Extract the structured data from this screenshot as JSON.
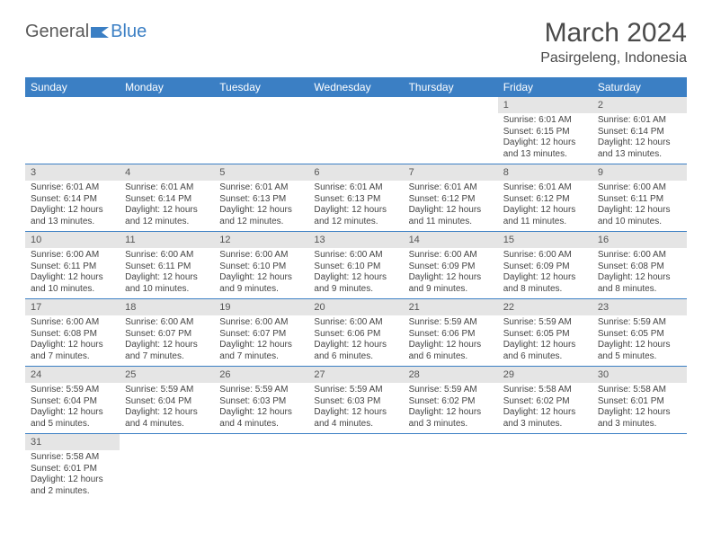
{
  "logo": {
    "part1": "General",
    "part2": "Blue"
  },
  "title": "March 2024",
  "location": "Pasirgeleng, Indonesia",
  "colors": {
    "header_bg": "#3b7fc4",
    "header_fg": "#ffffff",
    "daynum_bg": "#e5e5e5",
    "border": "#3b7fc4",
    "text": "#444444"
  },
  "weekdays": [
    "Sunday",
    "Monday",
    "Tuesday",
    "Wednesday",
    "Thursday",
    "Friday",
    "Saturday"
  ],
  "weeks": [
    [
      null,
      null,
      null,
      null,
      null,
      {
        "n": "1",
        "sr": "Sunrise: 6:01 AM",
        "ss": "Sunset: 6:15 PM",
        "dl1": "Daylight: 12 hours",
        "dl2": "and 13 minutes."
      },
      {
        "n": "2",
        "sr": "Sunrise: 6:01 AM",
        "ss": "Sunset: 6:14 PM",
        "dl1": "Daylight: 12 hours",
        "dl2": "and 13 minutes."
      }
    ],
    [
      {
        "n": "3",
        "sr": "Sunrise: 6:01 AM",
        "ss": "Sunset: 6:14 PM",
        "dl1": "Daylight: 12 hours",
        "dl2": "and 13 minutes."
      },
      {
        "n": "4",
        "sr": "Sunrise: 6:01 AM",
        "ss": "Sunset: 6:14 PM",
        "dl1": "Daylight: 12 hours",
        "dl2": "and 12 minutes."
      },
      {
        "n": "5",
        "sr": "Sunrise: 6:01 AM",
        "ss": "Sunset: 6:13 PM",
        "dl1": "Daylight: 12 hours",
        "dl2": "and 12 minutes."
      },
      {
        "n": "6",
        "sr": "Sunrise: 6:01 AM",
        "ss": "Sunset: 6:13 PM",
        "dl1": "Daylight: 12 hours",
        "dl2": "and 12 minutes."
      },
      {
        "n": "7",
        "sr": "Sunrise: 6:01 AM",
        "ss": "Sunset: 6:12 PM",
        "dl1": "Daylight: 12 hours",
        "dl2": "and 11 minutes."
      },
      {
        "n": "8",
        "sr": "Sunrise: 6:01 AM",
        "ss": "Sunset: 6:12 PM",
        "dl1": "Daylight: 12 hours",
        "dl2": "and 11 minutes."
      },
      {
        "n": "9",
        "sr": "Sunrise: 6:00 AM",
        "ss": "Sunset: 6:11 PM",
        "dl1": "Daylight: 12 hours",
        "dl2": "and 10 minutes."
      }
    ],
    [
      {
        "n": "10",
        "sr": "Sunrise: 6:00 AM",
        "ss": "Sunset: 6:11 PM",
        "dl1": "Daylight: 12 hours",
        "dl2": "and 10 minutes."
      },
      {
        "n": "11",
        "sr": "Sunrise: 6:00 AM",
        "ss": "Sunset: 6:11 PM",
        "dl1": "Daylight: 12 hours",
        "dl2": "and 10 minutes."
      },
      {
        "n": "12",
        "sr": "Sunrise: 6:00 AM",
        "ss": "Sunset: 6:10 PM",
        "dl1": "Daylight: 12 hours",
        "dl2": "and 9 minutes."
      },
      {
        "n": "13",
        "sr": "Sunrise: 6:00 AM",
        "ss": "Sunset: 6:10 PM",
        "dl1": "Daylight: 12 hours",
        "dl2": "and 9 minutes."
      },
      {
        "n": "14",
        "sr": "Sunrise: 6:00 AM",
        "ss": "Sunset: 6:09 PM",
        "dl1": "Daylight: 12 hours",
        "dl2": "and 9 minutes."
      },
      {
        "n": "15",
        "sr": "Sunrise: 6:00 AM",
        "ss": "Sunset: 6:09 PM",
        "dl1": "Daylight: 12 hours",
        "dl2": "and 8 minutes."
      },
      {
        "n": "16",
        "sr": "Sunrise: 6:00 AM",
        "ss": "Sunset: 6:08 PM",
        "dl1": "Daylight: 12 hours",
        "dl2": "and 8 minutes."
      }
    ],
    [
      {
        "n": "17",
        "sr": "Sunrise: 6:00 AM",
        "ss": "Sunset: 6:08 PM",
        "dl1": "Daylight: 12 hours",
        "dl2": "and 7 minutes."
      },
      {
        "n": "18",
        "sr": "Sunrise: 6:00 AM",
        "ss": "Sunset: 6:07 PM",
        "dl1": "Daylight: 12 hours",
        "dl2": "and 7 minutes."
      },
      {
        "n": "19",
        "sr": "Sunrise: 6:00 AM",
        "ss": "Sunset: 6:07 PM",
        "dl1": "Daylight: 12 hours",
        "dl2": "and 7 minutes."
      },
      {
        "n": "20",
        "sr": "Sunrise: 6:00 AM",
        "ss": "Sunset: 6:06 PM",
        "dl1": "Daylight: 12 hours",
        "dl2": "and 6 minutes."
      },
      {
        "n": "21",
        "sr": "Sunrise: 5:59 AM",
        "ss": "Sunset: 6:06 PM",
        "dl1": "Daylight: 12 hours",
        "dl2": "and 6 minutes."
      },
      {
        "n": "22",
        "sr": "Sunrise: 5:59 AM",
        "ss": "Sunset: 6:05 PM",
        "dl1": "Daylight: 12 hours",
        "dl2": "and 6 minutes."
      },
      {
        "n": "23",
        "sr": "Sunrise: 5:59 AM",
        "ss": "Sunset: 6:05 PM",
        "dl1": "Daylight: 12 hours",
        "dl2": "and 5 minutes."
      }
    ],
    [
      {
        "n": "24",
        "sr": "Sunrise: 5:59 AM",
        "ss": "Sunset: 6:04 PM",
        "dl1": "Daylight: 12 hours",
        "dl2": "and 5 minutes."
      },
      {
        "n": "25",
        "sr": "Sunrise: 5:59 AM",
        "ss": "Sunset: 6:04 PM",
        "dl1": "Daylight: 12 hours",
        "dl2": "and 4 minutes."
      },
      {
        "n": "26",
        "sr": "Sunrise: 5:59 AM",
        "ss": "Sunset: 6:03 PM",
        "dl1": "Daylight: 12 hours",
        "dl2": "and 4 minutes."
      },
      {
        "n": "27",
        "sr": "Sunrise: 5:59 AM",
        "ss": "Sunset: 6:03 PM",
        "dl1": "Daylight: 12 hours",
        "dl2": "and 4 minutes."
      },
      {
        "n": "28",
        "sr": "Sunrise: 5:59 AM",
        "ss": "Sunset: 6:02 PM",
        "dl1": "Daylight: 12 hours",
        "dl2": "and 3 minutes."
      },
      {
        "n": "29",
        "sr": "Sunrise: 5:58 AM",
        "ss": "Sunset: 6:02 PM",
        "dl1": "Daylight: 12 hours",
        "dl2": "and 3 minutes."
      },
      {
        "n": "30",
        "sr": "Sunrise: 5:58 AM",
        "ss": "Sunset: 6:01 PM",
        "dl1": "Daylight: 12 hours",
        "dl2": "and 3 minutes."
      }
    ],
    [
      {
        "n": "31",
        "sr": "Sunrise: 5:58 AM",
        "ss": "Sunset: 6:01 PM",
        "dl1": "Daylight: 12 hours",
        "dl2": "and 2 minutes."
      },
      null,
      null,
      null,
      null,
      null,
      null
    ]
  ]
}
